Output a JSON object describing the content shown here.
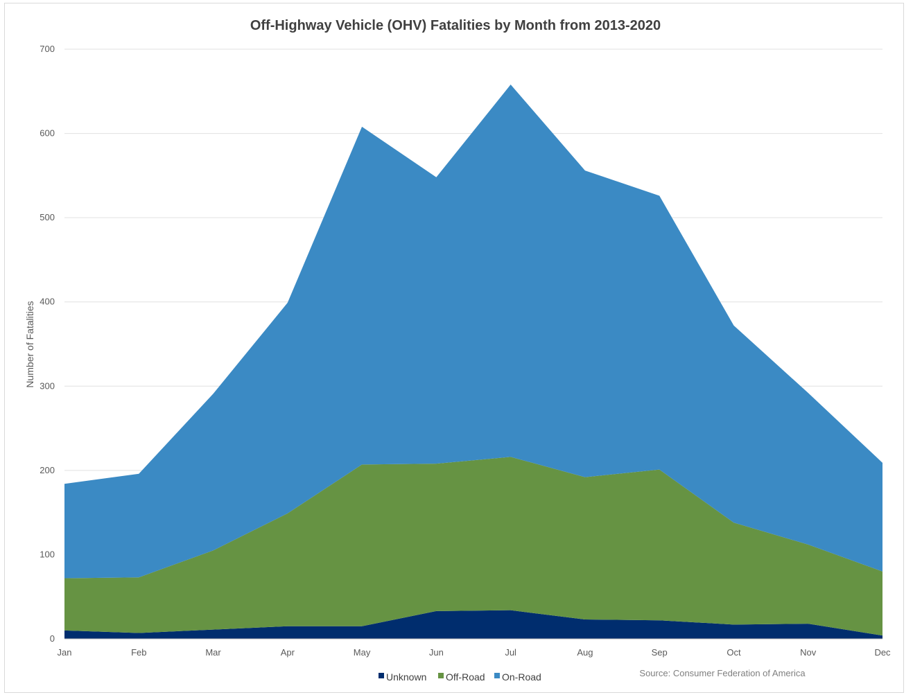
{
  "chart_data": {
    "type": "area",
    "stacked": true,
    "title": "Off-Highway Vehicle (OHV) Fatalities by Month from 2013-2020",
    "xlabel": "",
    "ylabel": "Number of Fatalities",
    "ylim": [
      0,
      700
    ],
    "yticks": [
      0,
      100,
      200,
      300,
      400,
      500,
      600,
      700
    ],
    "grid": true,
    "legend_position": "bottom",
    "categories": [
      "Jan",
      "Feb",
      "Mar",
      "Apr",
      "May",
      "Jun",
      "Jul",
      "Aug",
      "Sep",
      "Oct",
      "Nov",
      "Dec"
    ],
    "series": [
      {
        "name": "Unknown",
        "color": "#002d6e",
        "values": [
          10,
          7,
          11,
          15,
          15,
          33,
          34,
          23,
          22,
          17,
          18,
          4
        ]
      },
      {
        "name": "Off-Road",
        "color": "#669343",
        "values": [
          62,
          66,
          94,
          134,
          192,
          175,
          182,
          169,
          179,
          121,
          94,
          76
        ]
      },
      {
        "name": "On-Road",
        "color": "#3b8ac4",
        "values": [
          112,
          123,
          186,
          250,
          401,
          340,
          442,
          364,
          325,
          234,
          180,
          129
        ]
      }
    ],
    "source": "Source: Consumer Federation of America"
  }
}
